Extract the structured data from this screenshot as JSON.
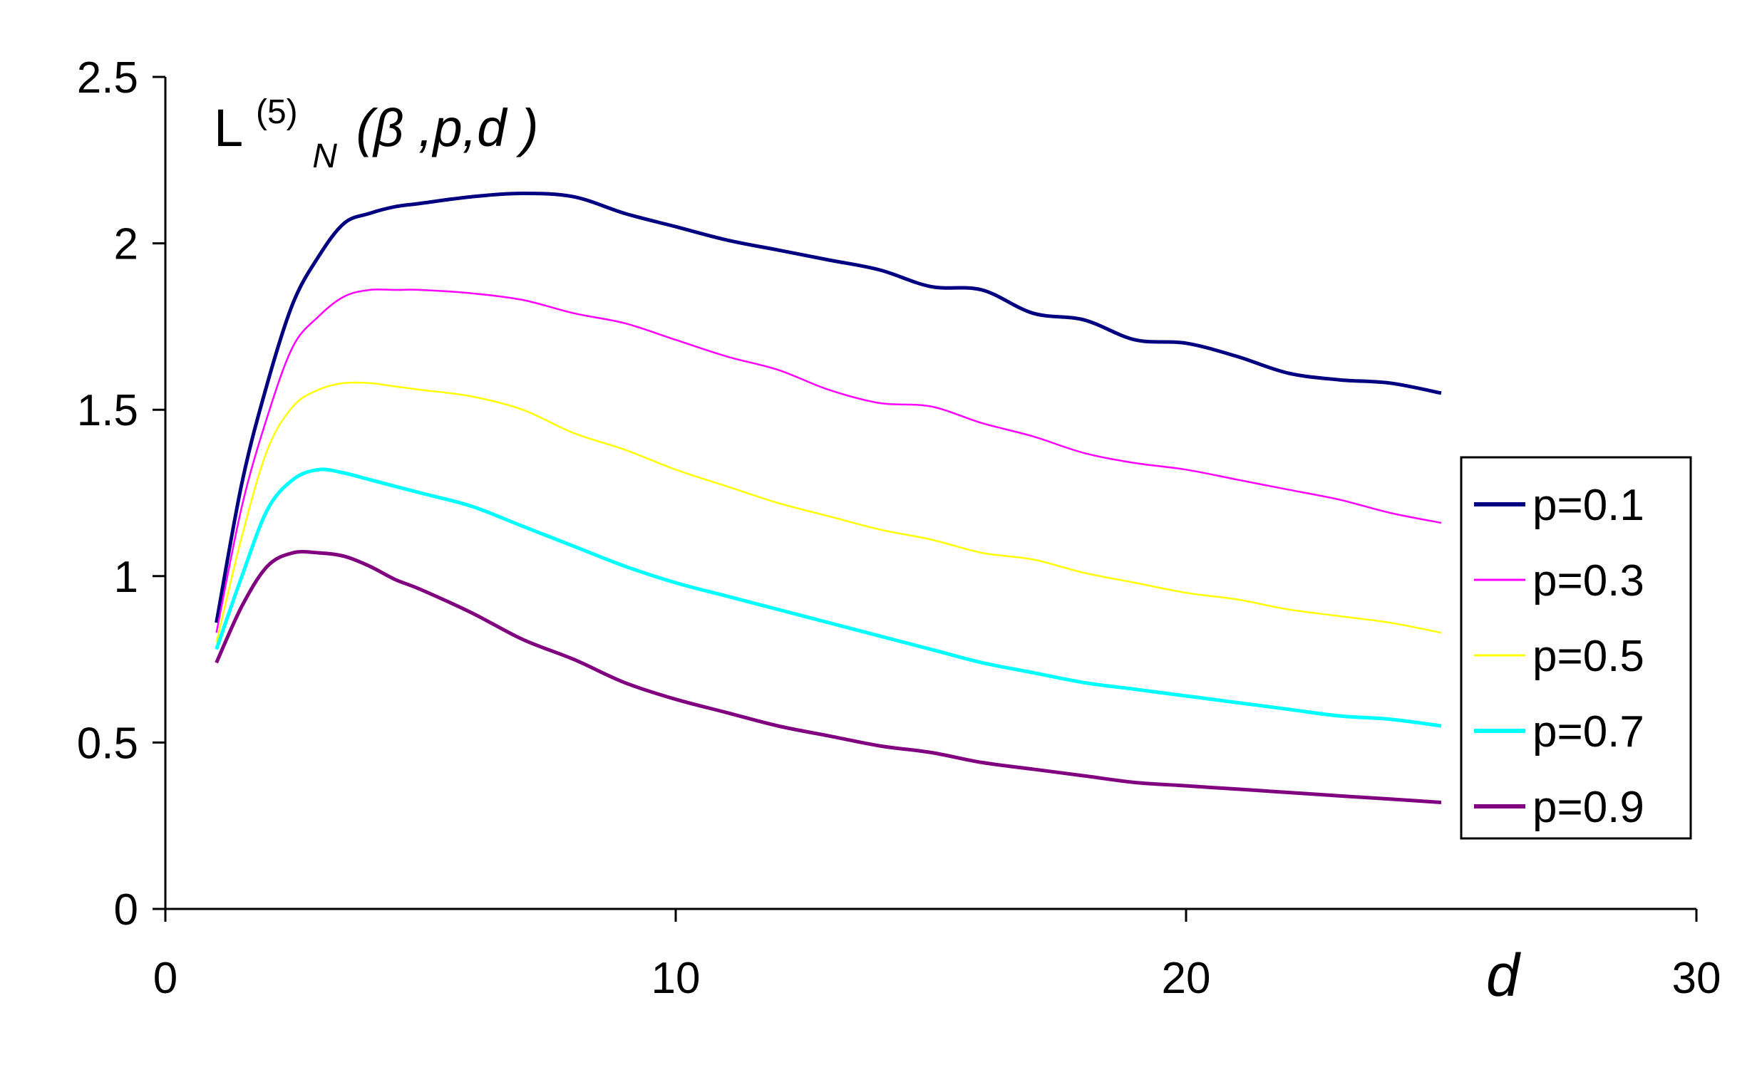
{
  "chart_data": {
    "type": "line",
    "title": {
      "main": "L",
      "superscript": "(5)",
      "subscript": "N",
      "args": "(β ,p,d )"
    },
    "xlabel": "d",
    "ylabel": "",
    "xlim": [
      0,
      30
    ],
    "ylim": [
      0,
      2.5
    ],
    "xticks": [
      "0",
      "10",
      "20",
      "30"
    ],
    "yticks": [
      "0",
      "0.5",
      "1",
      "1.5",
      "2",
      "2.5"
    ],
    "grid": false,
    "legend_position": "right",
    "x": [
      1,
      1.5,
      2,
      2.5,
      3,
      3.5,
      4,
      4.5,
      5,
      6,
      7,
      8,
      9,
      10,
      11,
      12,
      13,
      14,
      15,
      16,
      17,
      18,
      19,
      20,
      21,
      22,
      23,
      24,
      25
    ],
    "series": [
      {
        "name": "p=0.1",
        "color": "#000080",
        "values": [
          0.86,
          1.28,
          1.58,
          1.82,
          1.96,
          2.06,
          2.09,
          2.11,
          2.12,
          2.14,
          2.15,
          2.14,
          2.09,
          2.05,
          2.01,
          1.98,
          1.95,
          1.92,
          1.87,
          1.86,
          1.79,
          1.77,
          1.71,
          1.7,
          1.66,
          1.61,
          1.59,
          1.58,
          1.55
        ]
      },
      {
        "name": "p=0.3",
        "color": "#FF00FF",
        "values": [
          0.83,
          1.21,
          1.48,
          1.69,
          1.78,
          1.84,
          1.86,
          1.86,
          1.86,
          1.85,
          1.83,
          1.79,
          1.76,
          1.71,
          1.66,
          1.62,
          1.56,
          1.52,
          1.51,
          1.46,
          1.42,
          1.37,
          1.34,
          1.32,
          1.29,
          1.26,
          1.23,
          1.19,
          1.16
        ]
      },
      {
        "name": "p=0.5",
        "color": "#FFFF00",
        "values": [
          0.8,
          1.12,
          1.38,
          1.51,
          1.56,
          1.58,
          1.58,
          1.57,
          1.56,
          1.54,
          1.5,
          1.43,
          1.38,
          1.32,
          1.27,
          1.22,
          1.18,
          1.14,
          1.11,
          1.07,
          1.05,
          1.01,
          0.98,
          0.95,
          0.93,
          0.9,
          0.88,
          0.86,
          0.83
        ]
      },
      {
        "name": "p=0.7",
        "color": "#00FFFF",
        "values": [
          0.78,
          1.0,
          1.2,
          1.29,
          1.32,
          1.31,
          1.29,
          1.27,
          1.25,
          1.21,
          1.15,
          1.09,
          1.03,
          0.98,
          0.94,
          0.9,
          0.86,
          0.82,
          0.78,
          0.74,
          0.71,
          0.68,
          0.66,
          0.64,
          0.62,
          0.6,
          0.58,
          0.57,
          0.55
        ]
      },
      {
        "name": "p=0.9",
        "color": "#800080",
        "values": [
          0.74,
          0.91,
          1.03,
          1.07,
          1.07,
          1.06,
          1.03,
          0.99,
          0.96,
          0.89,
          0.81,
          0.75,
          0.68,
          0.63,
          0.59,
          0.55,
          0.52,
          0.49,
          0.47,
          0.44,
          0.42,
          0.4,
          0.38,
          0.37,
          0.36,
          0.35,
          0.34,
          0.33,
          0.32
        ]
      }
    ]
  }
}
